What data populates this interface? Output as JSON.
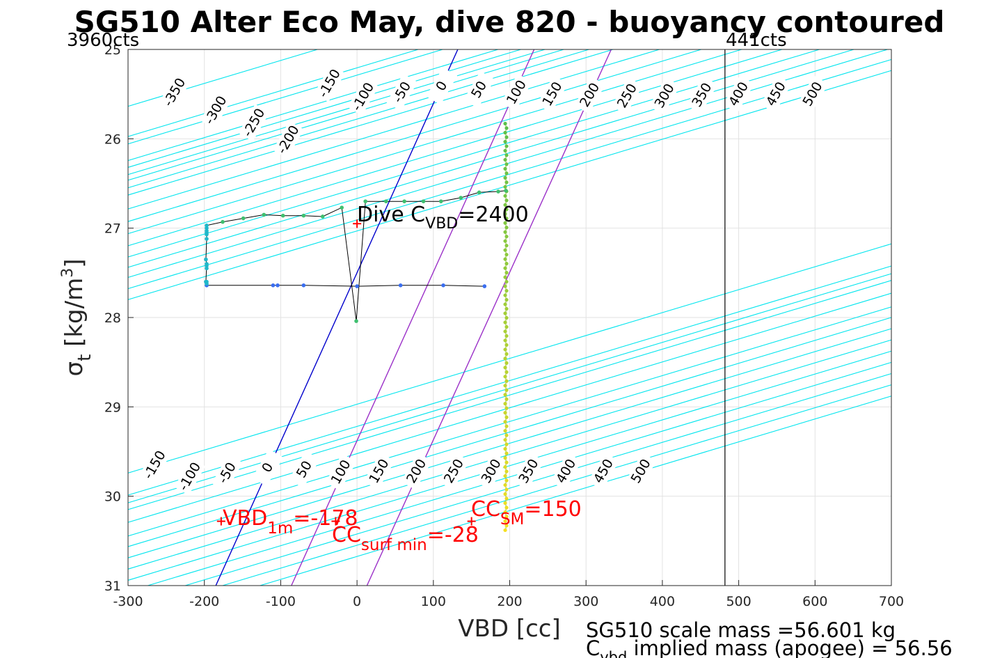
{
  "chart_data": {
    "type": "scatter",
    "title": "SG510 Alter Eco May, dive 820 - buoyancy contoured",
    "xlabel": "VBD [cc]",
    "ylabel_main": "σ",
    "ylabel_sub": "t",
    "ylabel_unit_pre": " [kg/m",
    "ylabel_unit_sup": "3",
    "ylabel_unit_post": "]",
    "xlim": [
      -300,
      700
    ],
    "ylim": [
      25,
      31
    ],
    "y_reversed": true,
    "grid": true,
    "xticks": [
      "-300",
      "-200",
      "-100",
      "0",
      "100",
      "200",
      "300",
      "400",
      "500",
      "600",
      "700"
    ],
    "yticks": [
      "25",
      "26",
      "27",
      "28",
      "29",
      "30",
      "31"
    ],
    "counts_left": "3960cts",
    "counts_right": "441cts",
    "counts_right_vbd": 482,
    "contour_top": {
      "density": 25.2,
      "values": [
        -350,
        -300,
        -250,
        -200,
        -150,
        -100,
        -50,
        0,
        50,
        100,
        150,
        200,
        250,
        300,
        350,
        400,
        450,
        500
      ],
      "labels": [
        {
          "text": "-350",
          "vbd": -239,
          "sigma": 25.48
        },
        {
          "text": "-300",
          "vbd": -185,
          "sigma": 25.68
        },
        {
          "text": "-250",
          "vbd": -135,
          "sigma": 25.82
        },
        {
          "text": "-200",
          "vbd": -90,
          "sigma": 26.01
        },
        {
          "text": "-150",
          "vbd": -36,
          "sigma": 25.38
        },
        {
          "text": "-100",
          "vbd": 8,
          "sigma": 25.53
        },
        {
          "text": "-50",
          "vbd": 59,
          "sigma": 25.48
        },
        {
          "text": "0",
          "vbd": 111,
          "sigma": 25.41
        },
        {
          "text": "50",
          "vbd": 160,
          "sigma": 25.45
        },
        {
          "text": "100",
          "vbd": 209,
          "sigma": 25.48
        },
        {
          "text": "150",
          "vbd": 256,
          "sigma": 25.5
        },
        {
          "text": "200",
          "vbd": 305,
          "sigma": 25.51
        },
        {
          "text": "250",
          "vbd": 354,
          "sigma": 25.52
        },
        {
          "text": "300",
          "vbd": 403,
          "sigma": 25.52
        },
        {
          "text": "350",
          "vbd": 452,
          "sigma": 25.51
        },
        {
          "text": "400",
          "vbd": 500,
          "sigma": 25.5
        },
        {
          "text": "450",
          "vbd": 549,
          "sigma": 25.5
        },
        {
          "text": "500",
          "vbd": 597,
          "sigma": 25.5
        }
      ]
    },
    "contour_bottom": {
      "density": 29.0,
      "values": [
        -150,
        -100,
        -50,
        0,
        50,
        100,
        150,
        200,
        250,
        300,
        350,
        400,
        450,
        500
      ],
      "labels": [
        {
          "text": "-150",
          "vbd": -265,
          "sigma": 29.65
        },
        {
          "text": "-100",
          "vbd": -219,
          "sigma": 29.78
        },
        {
          "text": "-50",
          "vbd": -170,
          "sigma": 29.74
        },
        {
          "text": "0",
          "vbd": -117,
          "sigma": 29.68
        },
        {
          "text": "50",
          "vbd": -69,
          "sigma": 29.7
        },
        {
          "text": "100",
          "vbd": -21,
          "sigma": 29.73
        },
        {
          "text": "150",
          "vbd": 29,
          "sigma": 29.72
        },
        {
          "text": "200",
          "vbd": 78,
          "sigma": 29.72
        },
        {
          "text": "250",
          "vbd": 127,
          "sigma": 29.72
        },
        {
          "text": "300",
          "vbd": 176,
          "sigma": 29.72
        },
        {
          "text": "350",
          "vbd": 225,
          "sigma": 29.72
        },
        {
          "text": "400",
          "vbd": 274,
          "sigma": 29.72
        },
        {
          "text": "450",
          "vbd": 323,
          "sigma": 29.72
        },
        {
          "text": "500",
          "vbd": 372,
          "sigma": 29.72
        }
      ]
    },
    "contour_slope_cc_per_sigma": -390,
    "highlight_lines": [
      {
        "label": "0 (top) dark blue",
        "color": "#0000cc",
        "x_at_top": 132,
        "x_at_bottom": -185
      },
      {
        "label": "0 (bottom) purple",
        "color": "#9b30c8",
        "x_at_top": 232,
        "x_at_bottom": -86
      },
      {
        "label": "CC line purple",
        "color": "#9b30c8",
        "x_at_top": 333,
        "x_at_bottom": 13
      }
    ],
    "contour_color": "#00e5ee",
    "descent_path": [
      [
        -197,
        27.64
      ],
      [
        -110,
        27.64
      ],
      [
        -104,
        27.64
      ],
      [
        -70,
        27.64
      ],
      [
        0,
        27.65
      ],
      [
        57,
        27.64
      ],
      [
        113,
        27.64
      ],
      [
        167,
        27.65
      ]
    ],
    "loop_path": [
      [
        -197,
        27.64
      ],
      [
        -198,
        27.6
      ],
      [
        -197,
        27.4
      ],
      [
        -198,
        27.35
      ],
      [
        -197,
        27.12
      ],
      [
        -197,
        27.05
      ],
      [
        -197,
        26.97
      ],
      [
        -176,
        26.93
      ],
      [
        -149,
        26.89
      ],
      [
        -122,
        26.85
      ],
      [
        -97,
        26.86
      ],
      [
        -70,
        26.86
      ],
      [
        -45,
        26.87
      ],
      [
        -20,
        26.77
      ],
      [
        -1,
        28.04
      ],
      [
        11,
        26.7
      ],
      [
        38,
        26.7
      ],
      [
        62,
        26.7
      ],
      [
        87,
        26.7
      ],
      [
        110,
        26.7
      ],
      [
        136,
        26.66
      ],
      [
        160,
        26.6
      ],
      [
        185,
        26.59
      ],
      [
        195,
        26.58
      ]
    ],
    "apogee_x": 195,
    "apogee_range": [
      25.83,
      30.38
    ],
    "markers": [
      {
        "name": "dive-cvbd",
        "vbd": 0,
        "sigma": 26.95
      },
      {
        "name": "vbd-1m",
        "vbd": -178,
        "sigma": 30.28
      },
      {
        "name": "cc-surf-min",
        "vbd": -28,
        "sigma": 30.28
      },
      {
        "name": "cc-sm",
        "vbd": 150,
        "sigma": 30.28
      }
    ],
    "annotations": {
      "dive_cvbd": {
        "pre": "Dive C",
        "sub": "VBD",
        "post": "=2400"
      },
      "vbd_1m": {
        "pre": "VBD",
        "sub": "1m",
        "post": "=-178"
      },
      "cc_surf_min": {
        "pre": "CC",
        "sub": "surf min",
        "post": "=-28"
      },
      "cc_sm": {
        "pre": "CC",
        "sub": "SM",
        "post": "=150"
      }
    },
    "footer": {
      "line1": "SG510 scale mass =56.601 kg",
      "line2_pre": "C",
      "line2_sub": "vbd",
      "line2_post": " implied mass (apogee) = 56.56"
    },
    "colors": {
      "descent": "#3a6ef0",
      "loop": "#3fbf6f",
      "loop_start": "#1fb7c9",
      "apogee_top": "#5abf4a",
      "apogee_bottom": "#f5e020",
      "markers": "#ff0000"
    }
  }
}
